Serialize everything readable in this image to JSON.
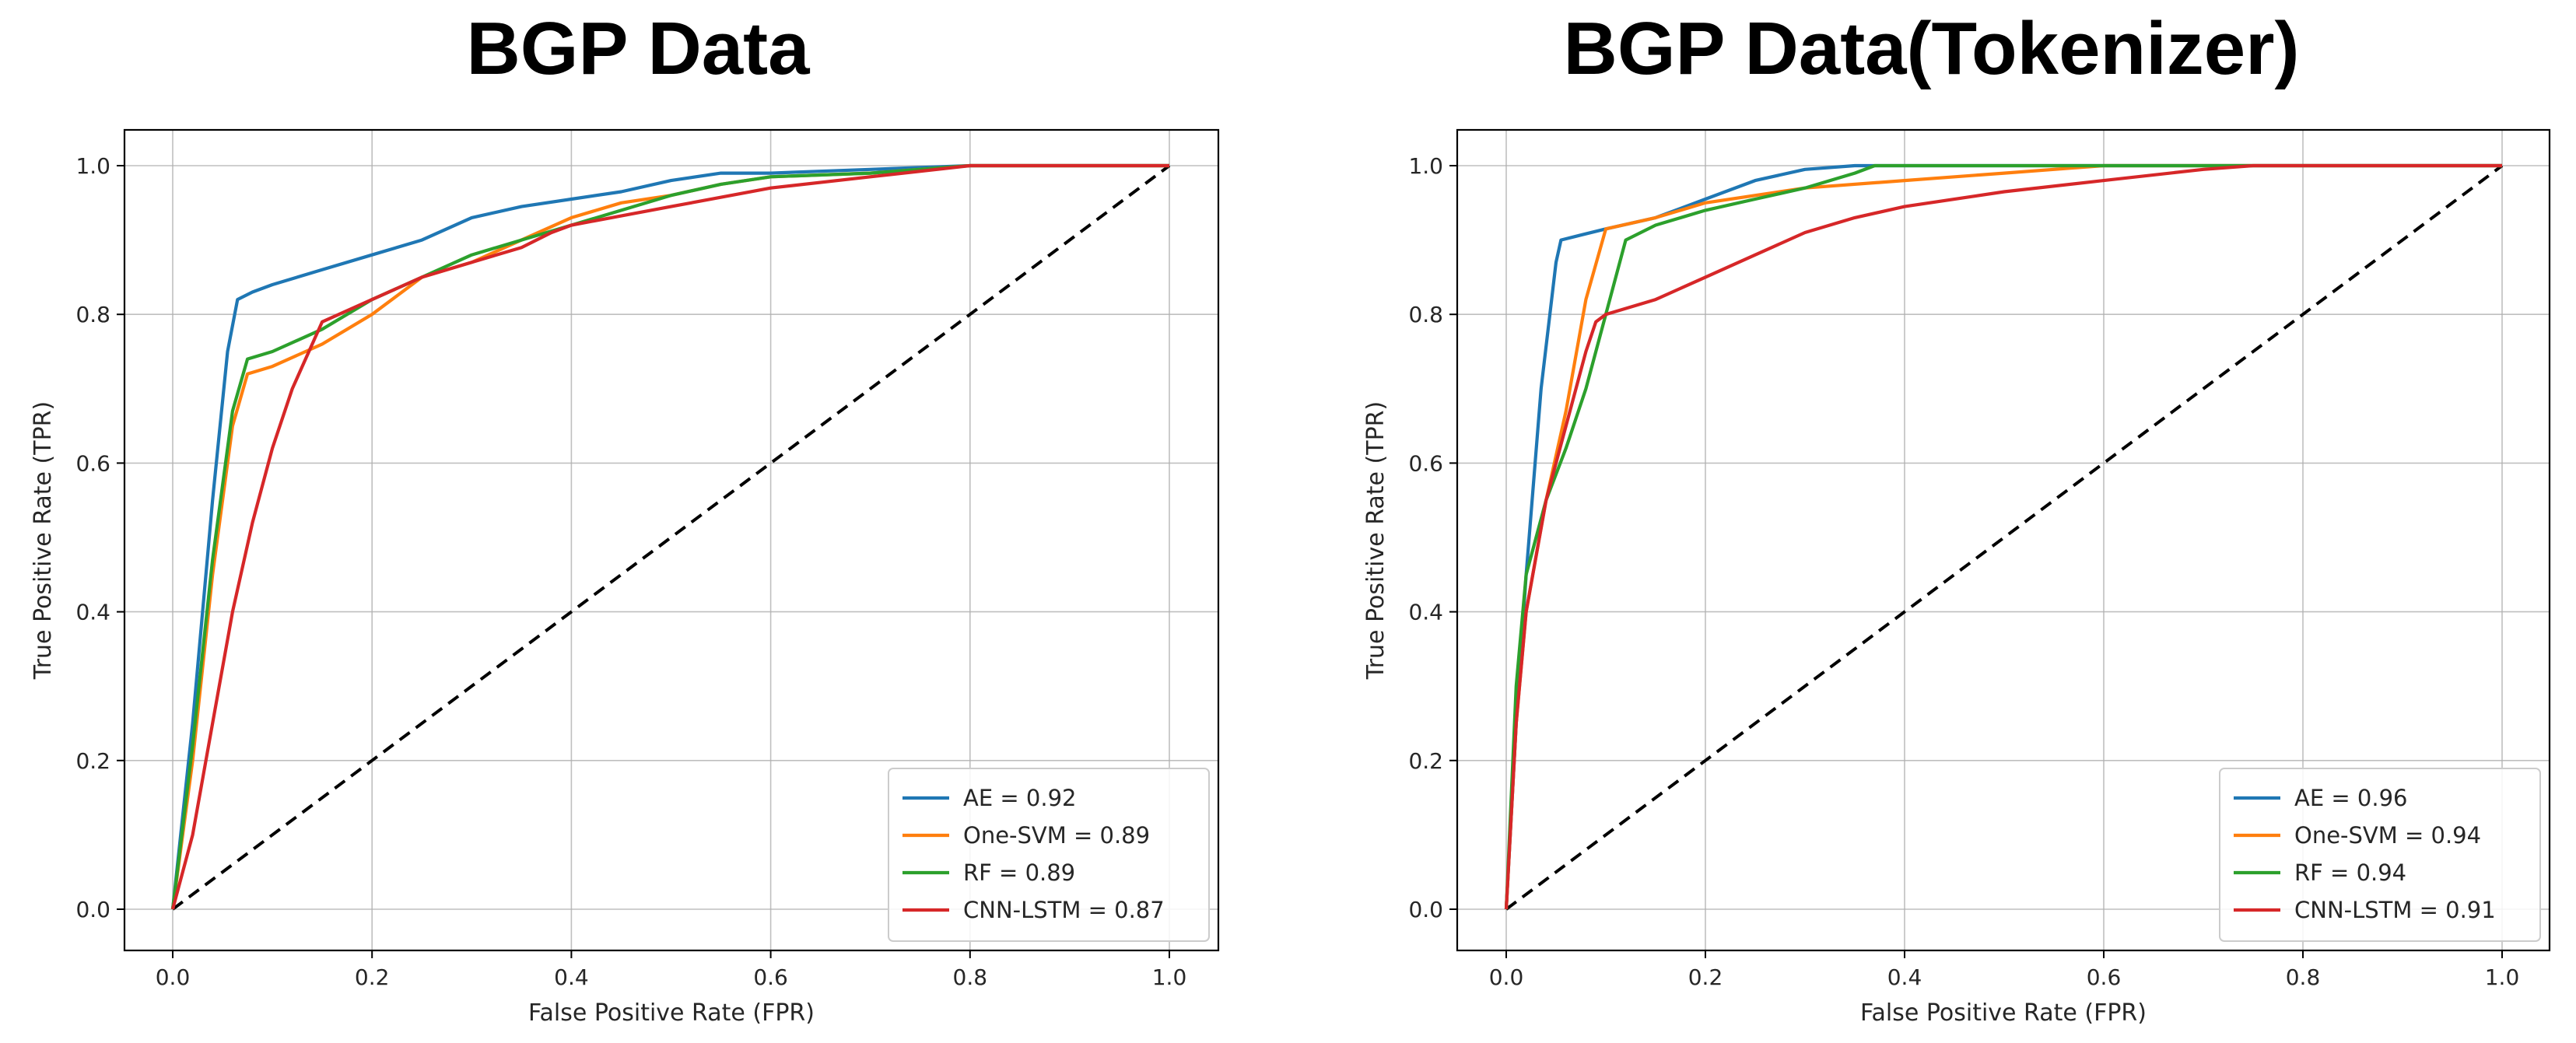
{
  "chart_data": [
    {
      "type": "line",
      "title": "BGP Data",
      "xlabel": "False Positive Rate (FPR)",
      "ylabel": "True Positive Rate (TPR)",
      "xlim": [
        0,
        1
      ],
      "ylim": [
        0,
        1
      ],
      "xticks": [
        "0.0",
        "0.2",
        "0.4",
        "0.6",
        "0.8",
        "1.0"
      ],
      "yticks": [
        "0.0",
        "0.2",
        "0.4",
        "0.6",
        "0.8",
        "1.0"
      ],
      "grid": true,
      "legend_position": "lower-right",
      "diagonal": {
        "x": [
          0,
          1
        ],
        "y": [
          0,
          1
        ],
        "style": "dashed",
        "color": "#000000"
      },
      "series": [
        {
          "name": "AE = 0.92",
          "color": "#1f77b4",
          "x": [
            0,
            0.02,
            0.04,
            0.055,
            0.065,
            0.08,
            0.1,
            0.15,
            0.2,
            0.25,
            0.3,
            0.35,
            0.4,
            0.45,
            0.5,
            0.55,
            0.6,
            0.7,
            0.8,
            0.9,
            1.0
          ],
          "y": [
            0,
            0.25,
            0.55,
            0.75,
            0.82,
            0.83,
            0.84,
            0.86,
            0.88,
            0.9,
            0.93,
            0.945,
            0.955,
            0.965,
            0.98,
            0.99,
            0.99,
            0.995,
            1.0,
            1.0,
            1.0
          ]
        },
        {
          "name": "One-SVM = 0.89",
          "color": "#ff7f0e",
          "x": [
            0,
            0.02,
            0.04,
            0.06,
            0.075,
            0.1,
            0.15,
            0.2,
            0.25,
            0.3,
            0.35,
            0.4,
            0.45,
            0.5,
            0.55,
            0.6,
            0.7,
            0.8,
            1.0
          ],
          "y": [
            0,
            0.2,
            0.45,
            0.65,
            0.72,
            0.73,
            0.76,
            0.8,
            0.85,
            0.87,
            0.9,
            0.93,
            0.95,
            0.96,
            0.975,
            0.985,
            0.99,
            1.0,
            1.0
          ]
        },
        {
          "name": "RF = 0.89",
          "color": "#2ca02c",
          "x": [
            0,
            0.02,
            0.04,
            0.06,
            0.075,
            0.1,
            0.15,
            0.2,
            0.25,
            0.3,
            0.35,
            0.4,
            0.45,
            0.5,
            0.55,
            0.6,
            0.7,
            0.8,
            1.0
          ],
          "y": [
            0,
            0.22,
            0.47,
            0.67,
            0.74,
            0.75,
            0.78,
            0.82,
            0.85,
            0.88,
            0.9,
            0.92,
            0.94,
            0.96,
            0.975,
            0.985,
            0.99,
            1.0,
            1.0
          ]
        },
        {
          "name": "CNN-LSTM = 0.87",
          "color": "#d62728",
          "x": [
            0,
            0.02,
            0.04,
            0.06,
            0.08,
            0.1,
            0.12,
            0.15,
            0.2,
            0.25,
            0.3,
            0.35,
            0.38,
            0.4,
            0.5,
            0.6,
            0.7,
            0.8,
            1.0
          ],
          "y": [
            0,
            0.1,
            0.25,
            0.4,
            0.52,
            0.62,
            0.7,
            0.79,
            0.82,
            0.85,
            0.87,
            0.89,
            0.91,
            0.92,
            0.945,
            0.97,
            0.985,
            1.0,
            1.0
          ]
        }
      ],
      "legend": [
        "AE = 0.92",
        "One-SVM = 0.89",
        "RF = 0.89",
        "CNN-LSTM = 0.87"
      ]
    },
    {
      "type": "line",
      "title": "BGP Data(Tokenizer)",
      "xlabel": "False Positive Rate (FPR)",
      "ylabel": "True Positive Rate (TPR)",
      "xlim": [
        0,
        1
      ],
      "ylim": [
        0,
        1
      ],
      "xticks": [
        "0.0",
        "0.2",
        "0.4",
        "0.6",
        "0.8",
        "1.0"
      ],
      "yticks": [
        "0.0",
        "0.2",
        "0.4",
        "0.6",
        "0.8",
        "1.0"
      ],
      "grid": true,
      "legend_position": "lower-right",
      "diagonal": {
        "x": [
          0,
          1
        ],
        "y": [
          0,
          1
        ],
        "style": "dashed",
        "color": "#000000"
      },
      "series": [
        {
          "name": "AE = 0.96",
          "color": "#1f77b4",
          "x": [
            0,
            0.01,
            0.02,
            0.035,
            0.05,
            0.055,
            0.07,
            0.1,
            0.15,
            0.2,
            0.25,
            0.3,
            0.35,
            0.4,
            0.6,
            0.8,
            1.0
          ],
          "y": [
            0,
            0.25,
            0.45,
            0.7,
            0.87,
            0.9,
            0.905,
            0.915,
            0.93,
            0.955,
            0.98,
            0.995,
            1.0,
            1.0,
            1.0,
            1.0,
            1.0
          ]
        },
        {
          "name": "One-SVM = 0.94",
          "color": "#ff7f0e",
          "x": [
            0,
            0.01,
            0.02,
            0.04,
            0.06,
            0.08,
            0.1,
            0.15,
            0.2,
            0.3,
            0.4,
            0.5,
            0.6,
            0.8,
            1.0
          ],
          "y": [
            0,
            0.25,
            0.4,
            0.55,
            0.67,
            0.82,
            0.915,
            0.93,
            0.95,
            0.97,
            0.98,
            0.99,
            1.0,
            1.0,
            1.0
          ]
        },
        {
          "name": "RF = 0.94",
          "color": "#2ca02c",
          "x": [
            0,
            0.01,
            0.02,
            0.04,
            0.06,
            0.08,
            0.1,
            0.12,
            0.15,
            0.2,
            0.25,
            0.3,
            0.35,
            0.37,
            0.4,
            0.6,
            0.8,
            1.0
          ],
          "y": [
            0,
            0.3,
            0.45,
            0.55,
            0.62,
            0.7,
            0.8,
            0.9,
            0.92,
            0.94,
            0.955,
            0.97,
            0.99,
            1.0,
            1.0,
            1.0,
            1.0,
            1.0
          ]
        },
        {
          "name": "CNN-LSTM = 0.91",
          "color": "#d62728",
          "x": [
            0,
            0.01,
            0.02,
            0.04,
            0.06,
            0.08,
            0.09,
            0.1,
            0.15,
            0.2,
            0.25,
            0.3,
            0.35,
            0.4,
            0.5,
            0.6,
            0.7,
            0.75,
            0.8,
            1.0
          ],
          "y": [
            0,
            0.25,
            0.4,
            0.55,
            0.65,
            0.75,
            0.79,
            0.8,
            0.82,
            0.85,
            0.88,
            0.91,
            0.93,
            0.945,
            0.965,
            0.98,
            0.995,
            1.0,
            1.0,
            1.0
          ]
        }
      ],
      "legend": [
        "AE = 0.96",
        "One-SVM = 0.94",
        "RF = 0.94",
        "CNN-LSTM = 0.91"
      ]
    }
  ]
}
